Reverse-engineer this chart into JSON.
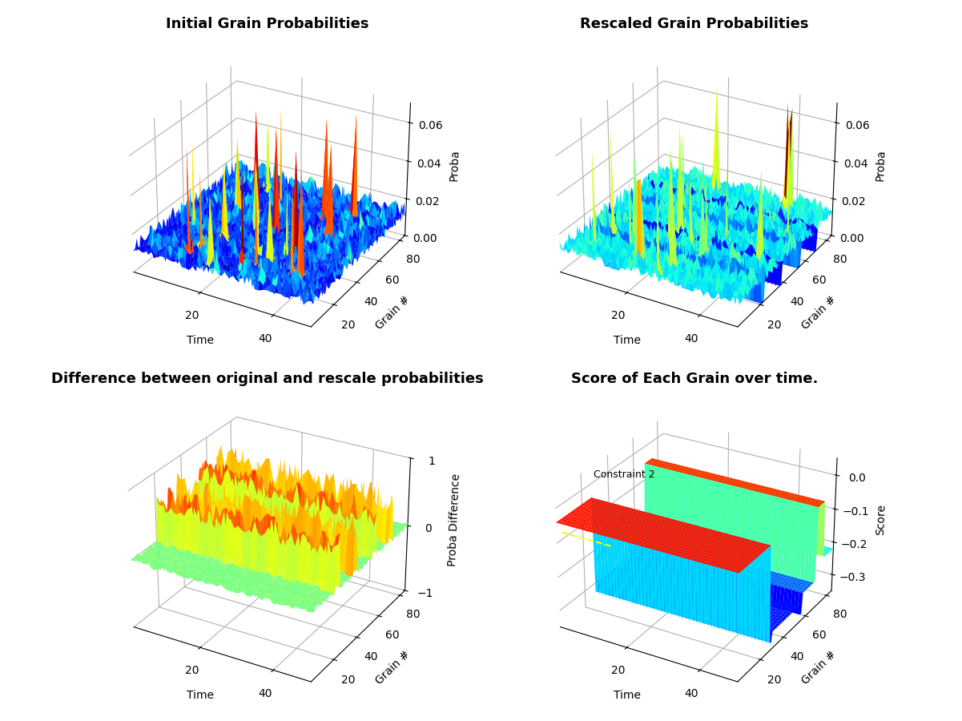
{
  "title_tl": "Initial Grain Probabilities",
  "title_tr": "Rescaled Grain Probabilities",
  "title_bl": "Difference between original and rescale probabilities",
  "title_br": "Score of Each Grain over time.",
  "ylabel_tl": "Proba",
  "ylabel_tr": "Proba",
  "ylabel_bl": "Proba Difference",
  "ylabel_br": "Score",
  "xlabel_tl": "Time",
  "xlabel_tr": "Time",
  "xlabel_bl": "Time",
  "xlabel_br": "Time",
  "n_grains": 85,
  "n_time": 50,
  "ylim_tl": [
    0,
    0.07
  ],
  "ylim_tr": [
    0,
    0.07
  ],
  "ylim_bl": [
    -1,
    1
  ],
  "ylim_br": [
    -0.35,
    0.05
  ],
  "background_color": "#ffffff",
  "seed": 42,
  "constraint_annotation": "Constraint 2",
  "elev": 28,
  "azim": -60
}
